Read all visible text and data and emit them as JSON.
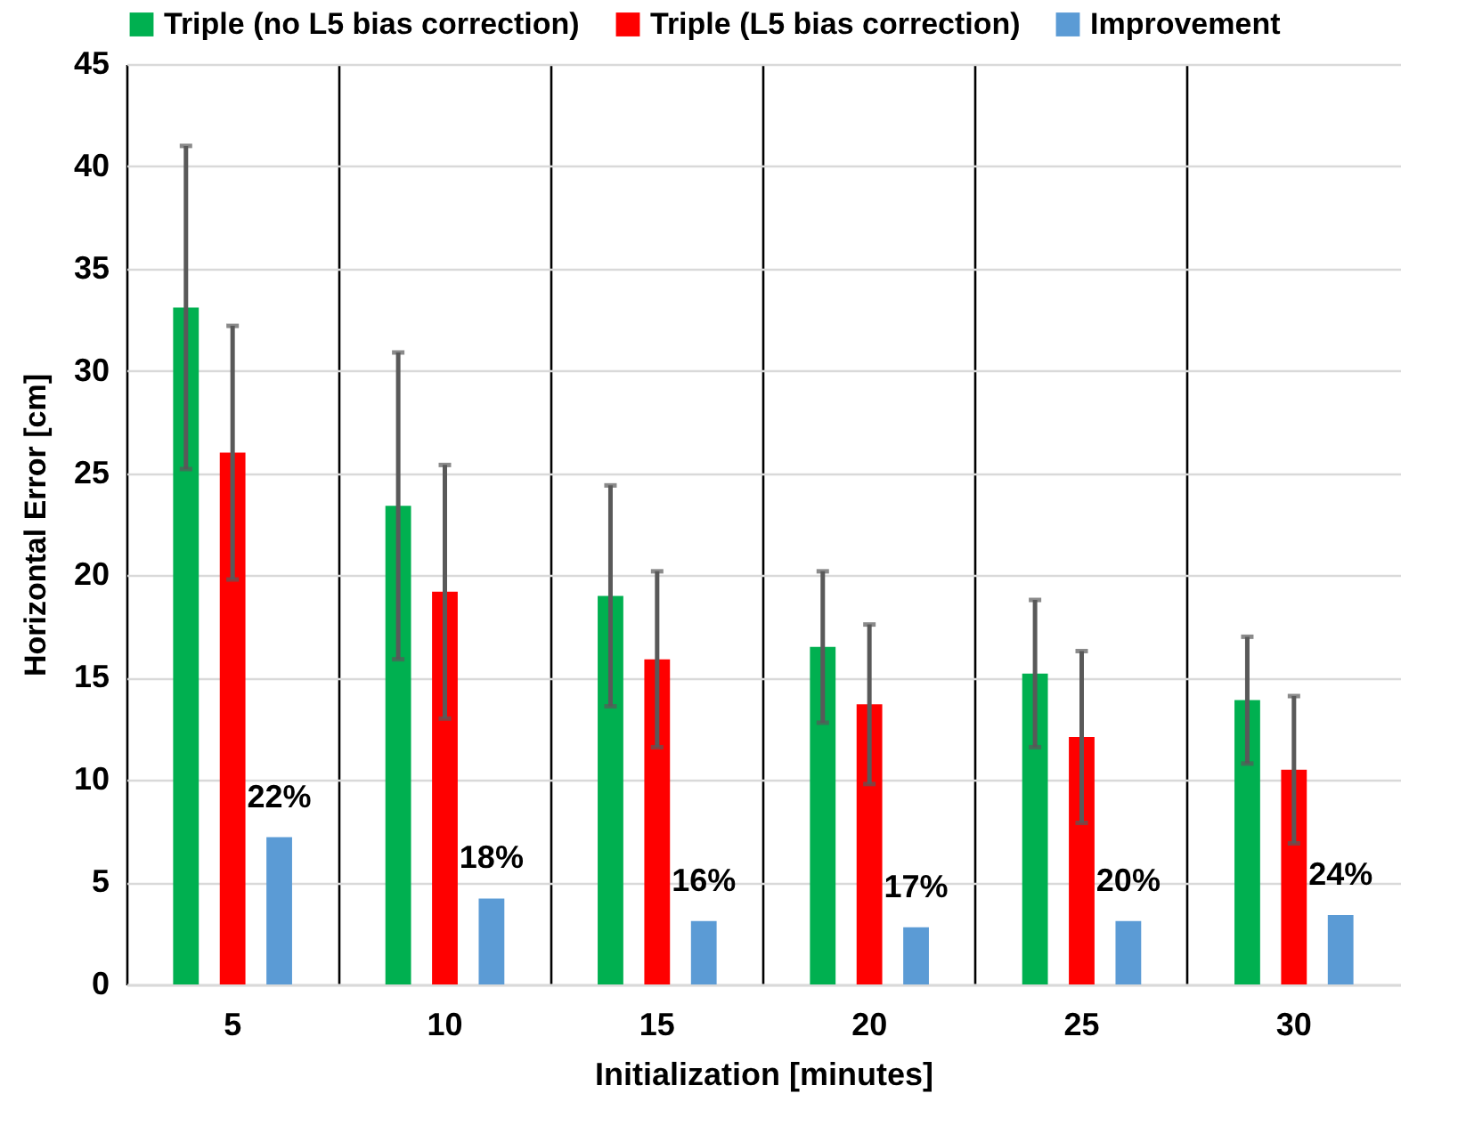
{
  "chart_data": {
    "type": "bar",
    "xlabel": "Initialization [minutes]",
    "ylabel": "Horizontal Error [cm]",
    "categories": [
      "5",
      "10",
      "15",
      "20",
      "25",
      "30"
    ],
    "series": [
      {
        "name": "Triple (no L5 bias correction)",
        "color": "#00b050",
        "values": [
          33.1,
          23.4,
          19.0,
          16.5,
          15.2,
          13.9
        ],
        "errors": [
          7.9,
          7.5,
          5.4,
          3.7,
          3.6,
          3.1
        ]
      },
      {
        "name": "Triple (L5 bias correction)",
        "color": "#ff0000",
        "values": [
          26.0,
          19.2,
          15.9,
          13.7,
          12.1,
          10.5
        ],
        "errors": [
          6.2,
          6.2,
          4.3,
          3.9,
          4.2,
          3.6
        ]
      },
      {
        "name": "Improvement",
        "color": "#5b9bd5",
        "values": [
          7.2,
          4.2,
          3.1,
          2.8,
          3.1,
          3.4
        ]
      }
    ],
    "annotations": [
      "22%",
      "18%",
      "16%",
      "17%",
      "20%",
      "24%"
    ],
    "ylim": [
      0,
      45
    ],
    "yticks": [
      0,
      5,
      10,
      15,
      20,
      25,
      30,
      35,
      40,
      45
    ],
    "grid": true,
    "legend": "top left"
  }
}
